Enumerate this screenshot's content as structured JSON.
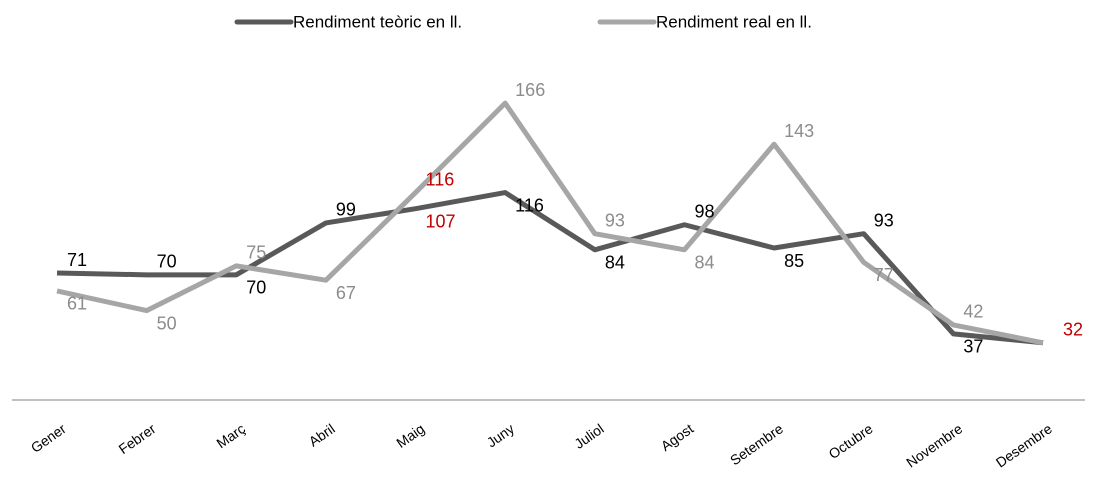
{
  "chart_data": {
    "type": "line",
    "categories": [
      "Gener",
      "Febrer",
      "Març",
      "Abril",
      "Maig",
      "Juny",
      "Juliol",
      "Agost",
      "Setembre",
      "Octubre",
      "Novembre",
      "Desembre"
    ],
    "series": [
      {
        "name": "Rendiment teòric en ll.",
        "color": "#595959",
        "label_color": "#000000",
        "highlight_color": "#c00000",
        "values": [
          71,
          70,
          70,
          99,
          107,
          116,
          84,
          98,
          85,
          93,
          37,
          32
        ],
        "label_colors": [
          "#000000",
          "#000000",
          "#000000",
          "#000000",
          "#c00000",
          "#000000",
          "#000000",
          "#000000",
          "#000000",
          "#000000",
          "#000000",
          "#c00000"
        ]
      },
      {
        "name": "Rendiment real en ll.",
        "color": "#a6a6a6",
        "values": [
          61,
          50,
          75,
          67,
          116,
          166,
          93,
          84,
          143,
          77,
          42,
          32
        ],
        "label_colors": [
          "#8c8c8c",
          "#8c8c8c",
          "#8c8c8c",
          "#8c8c8c",
          "#c00000",
          "#8c8c8c",
          "#8c8c8c",
          "#8c8c8c",
          "#8c8c8c",
          "#8c8c8c",
          "#8c8c8c",
          null
        ]
      }
    ],
    "ylim": [
      0,
      170
    ],
    "legend": "top",
    "grid": false
  }
}
